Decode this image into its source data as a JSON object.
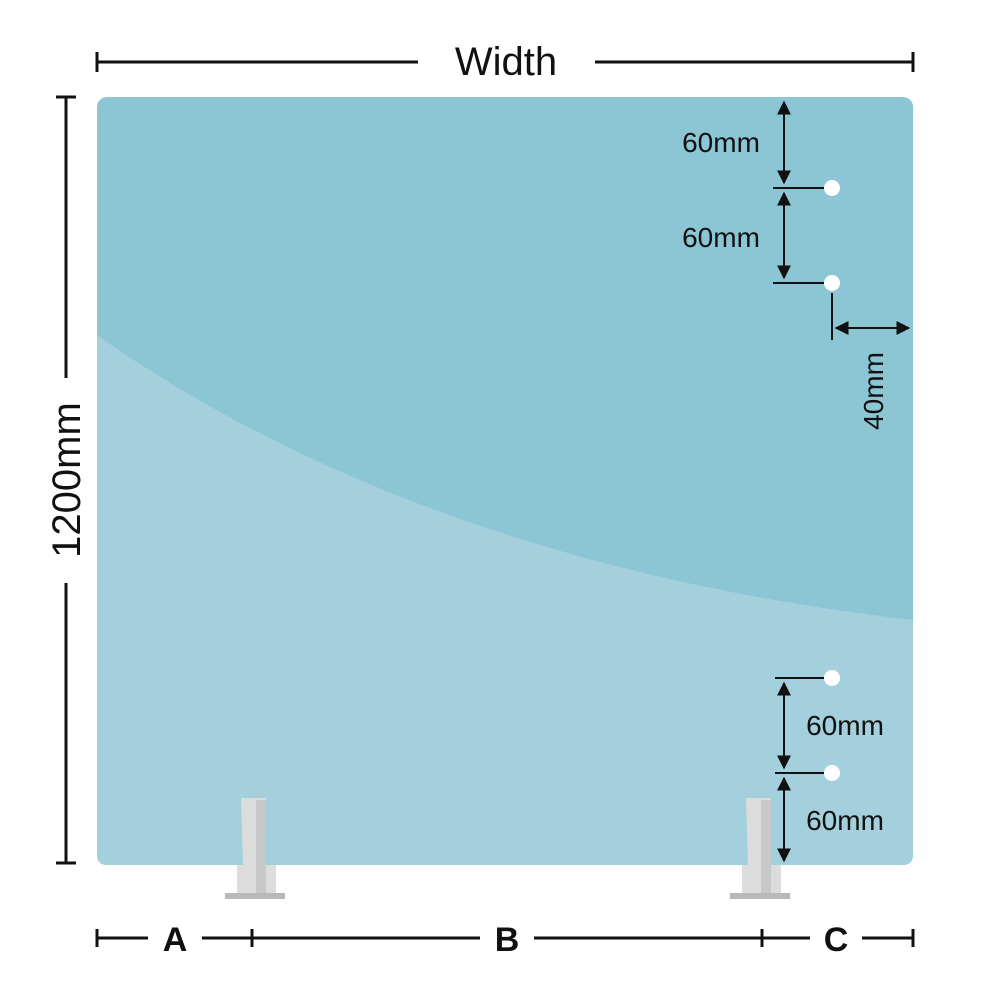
{
  "labels": {
    "width": "Width",
    "height": "1200mm",
    "hole_top_1": "60mm",
    "hole_top_2": "60mm",
    "side_offset": "40mm",
    "hole_bottom_1": "60mm",
    "hole_bottom_2": "60mm",
    "segment_a": "A",
    "segment_b": "B",
    "segment_c": "C"
  },
  "colors": {
    "panel": "#8cc5d4",
    "panel_lower": "#a3d0dc",
    "hole": "#ffffff",
    "foot": "#dcdcdc",
    "foot_shade": "#b9b9b9",
    "ink": "#111111"
  }
}
